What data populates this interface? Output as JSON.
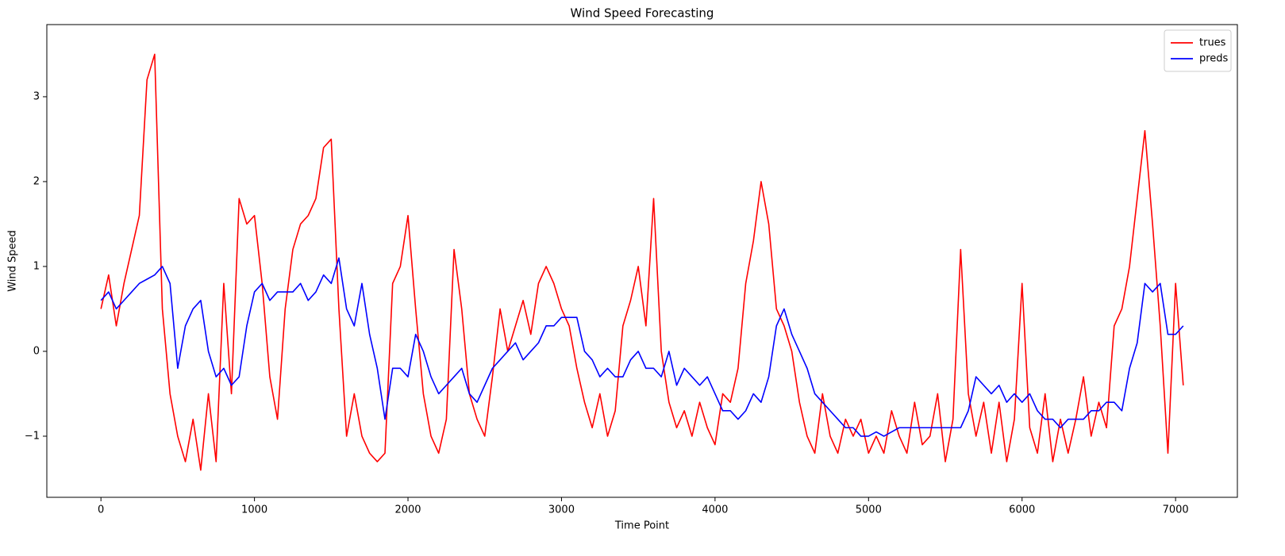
{
  "chart_data": {
    "type": "line",
    "title": "Wind Speed Forecasting",
    "x_label": "Time Point",
    "y_label": "Wind Speed",
    "x": [
      0,
      50,
      100,
      150,
      200,
      250,
      300,
      350,
      400,
      450,
      500,
      550,
      600,
      650,
      700,
      750,
      800,
      850,
      900,
      950,
      1000,
      1050,
      1100,
      1150,
      1200,
      1250,
      1300,
      1350,
      1400,
      1450,
      1500,
      1550,
      1600,
      1650,
      1700,
      1750,
      1800,
      1850,
      1900,
      1950,
      2000,
      2050,
      2100,
      2150,
      2200,
      2250,
      2300,
      2350,
      2400,
      2450,
      2500,
      2550,
      2600,
      2650,
      2700,
      2750,
      2800,
      2850,
      2900,
      2950,
      3000,
      3050,
      3100,
      3150,
      3200,
      3250,
      3300,
      3350,
      3400,
      3450,
      3500,
      3550,
      3600,
      3650,
      3700,
      3750,
      3800,
      3850,
      3900,
      3950,
      4000,
      4050,
      4100,
      4150,
      4200,
      4250,
      4300,
      4350,
      4400,
      4450,
      4500,
      4550,
      4600,
      4650,
      4700,
      4750,
      4800,
      4850,
      4900,
      4950,
      5000,
      5050,
      5100,
      5150,
      5200,
      5250,
      5300,
      5350,
      5400,
      5450,
      5500,
      5550,
      5600,
      5650,
      5700,
      5750,
      5800,
      5850,
      5900,
      5950,
      6000,
      6050,
      6100,
      6150,
      6200,
      6250,
      6300,
      6350,
      6400,
      6450,
      6500,
      6550,
      6600,
      6650,
      6700,
      6750,
      6800,
      6850,
      6900,
      6950,
      7000,
      7050
    ],
    "series": [
      {
        "name": "trues",
        "color": "#ff0000",
        "values": [
          0.5,
          0.9,
          0.3,
          0.8,
          1.2,
          1.6,
          3.2,
          3.5,
          0.5,
          -0.5,
          -1.0,
          -1.3,
          -0.8,
          -1.4,
          -0.5,
          -1.3,
          0.8,
          -0.5,
          1.8,
          1.5,
          1.6,
          0.8,
          -0.3,
          -0.8,
          0.5,
          1.2,
          1.5,
          1.6,
          1.8,
          2.4,
          2.5,
          0.5,
          -1.0,
          -0.5,
          -1.0,
          -1.2,
          -1.3,
          -1.2,
          0.8,
          1.0,
          1.6,
          0.5,
          -0.5,
          -1.0,
          -1.2,
          -0.8,
          1.2,
          0.5,
          -0.5,
          -0.8,
          -1.0,
          -0.3,
          0.5,
          0.0,
          0.3,
          0.6,
          0.2,
          0.8,
          1.0,
          0.8,
          0.5,
          0.3,
          -0.2,
          -0.6,
          -0.9,
          -0.5,
          -1.0,
          -0.7,
          0.3,
          0.6,
          1.0,
          0.3,
          1.8,
          0.0,
          -0.6,
          -0.9,
          -0.7,
          -1.0,
          -0.6,
          -0.9,
          -1.1,
          -0.5,
          -0.6,
          -0.2,
          0.8,
          1.3,
          2.0,
          1.5,
          0.5,
          0.3,
          0.0,
          -0.6,
          -1.0,
          -1.2,
          -0.5,
          -1.0,
          -1.2,
          -0.8,
          -1.0,
          -0.8,
          -1.2,
          -1.0,
          -1.2,
          -0.7,
          -1.0,
          -1.2,
          -0.6,
          -1.1,
          -1.0,
          -0.5,
          -1.3,
          -0.8,
          1.2,
          -0.5,
          -1.0,
          -0.6,
          -1.2,
          -0.6,
          -1.3,
          -0.8,
          0.8,
          -0.9,
          -1.2,
          -0.5,
          -1.3,
          -0.8,
          -1.2,
          -0.8,
          -0.3,
          -1.0,
          -0.6,
          -0.9,
          0.3,
          0.5,
          1.0,
          1.8,
          2.6,
          1.5,
          0.3,
          -1.2,
          0.8,
          -0.4
        ]
      },
      {
        "name": "preds",
        "color": "#0000ff",
        "values": [
          0.6,
          0.7,
          0.5,
          0.6,
          0.7,
          0.8,
          0.85,
          0.9,
          1.0,
          0.8,
          -0.2,
          0.3,
          0.5,
          0.6,
          0.0,
          -0.3,
          -0.2,
          -0.4,
          -0.3,
          0.3,
          0.7,
          0.8,
          0.6,
          0.7,
          0.7,
          0.7,
          0.8,
          0.6,
          0.7,
          0.9,
          0.8,
          1.1,
          0.5,
          0.3,
          0.8,
          0.2,
          -0.2,
          -0.8,
          -0.2,
          -0.2,
          -0.3,
          0.2,
          0.0,
          -0.3,
          -0.5,
          -0.4,
          -0.3,
          -0.2,
          -0.5,
          -0.6,
          -0.4,
          -0.2,
          -0.1,
          0.0,
          0.1,
          -0.1,
          0.0,
          0.1,
          0.3,
          0.3,
          0.4,
          0.4,
          0.4,
          0.0,
          -0.1,
          -0.3,
          -0.2,
          -0.3,
          -0.3,
          -0.1,
          0.0,
          -0.2,
          -0.2,
          -0.3,
          0.0,
          -0.4,
          -0.2,
          -0.3,
          -0.4,
          -0.3,
          -0.5,
          -0.7,
          -0.7,
          -0.8,
          -0.7,
          -0.5,
          -0.6,
          -0.3,
          0.3,
          0.5,
          0.2,
          0.0,
          -0.2,
          -0.5,
          -0.6,
          -0.7,
          -0.8,
          -0.9,
          -0.9,
          -1.0,
          -1.0,
          -0.95,
          -1.0,
          -0.95,
          -0.9,
          -0.9,
          -0.9,
          -0.9,
          -0.9,
          -0.9,
          -0.9,
          -0.9,
          -0.9,
          -0.7,
          -0.3,
          -0.4,
          -0.5,
          -0.4,
          -0.6,
          -0.5,
          -0.6,
          -0.5,
          -0.7,
          -0.8,
          -0.8,
          -0.9,
          -0.8,
          -0.8,
          -0.8,
          -0.7,
          -0.7,
          -0.6,
          -0.6,
          -0.7,
          -0.2,
          0.1,
          0.8,
          0.7,
          0.8,
          0.2,
          0.2,
          0.3
        ]
      }
    ],
    "xlim": [
      -352.5,
      7402.5
    ],
    "xticks": [
      0,
      1000,
      2000,
      3000,
      4000,
      5000,
      6000,
      7000
    ],
    "ylim": [
      -1.72,
      3.85
    ],
    "yticks": [
      {
        "value": -1,
        "label": "−1"
      },
      0,
      1,
      2,
      3
    ],
    "grid": false,
    "legend": "upper right"
  }
}
